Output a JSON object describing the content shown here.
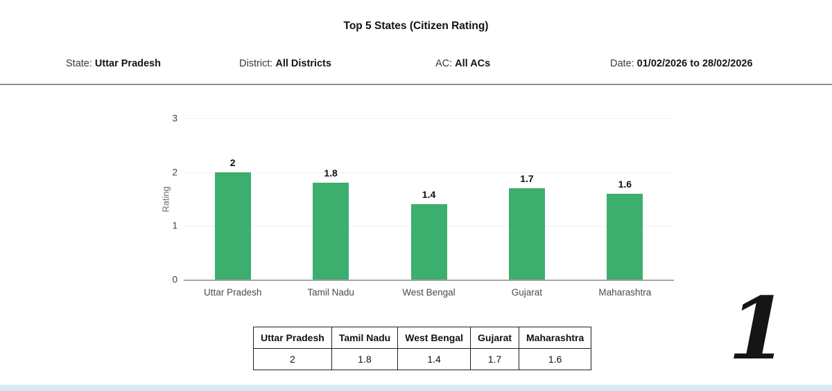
{
  "title": "Top 5 States (Citizen Rating)",
  "filters": {
    "state": {
      "label": "State:",
      "value": "Uttar Pradesh"
    },
    "district": {
      "label": "District:",
      "value": "All Districts"
    },
    "ac": {
      "label": "AC:",
      "value": "All ACs"
    },
    "date": {
      "label": "Date:",
      "value": "01/02/2026 to 28/02/2026"
    }
  },
  "chart_data": {
    "type": "bar",
    "title": "Top 5 States (Citizen Rating)",
    "categories": [
      "Uttar Pradesh",
      "Tamil Nadu",
      "West Bengal",
      "Gujarat",
      "Maharashtra"
    ],
    "values": [
      2,
      1.8,
      1.4,
      1.7,
      1.6
    ],
    "value_labels": [
      "2",
      "1.8",
      "1.4",
      "1.7",
      "1.6"
    ],
    "xlabel": "",
    "ylabel": "Rating",
    "ylim": [
      0,
      3
    ],
    "yticks": [
      0,
      1,
      2,
      3
    ],
    "grid": true,
    "legend_position": "none",
    "bar_color": "#3cae6d"
  },
  "summary_table": {
    "headers": [
      "Uttar Pradesh",
      "Tamil Nadu",
      "West Bengal",
      "Gujarat",
      "Maharashtra"
    ],
    "values": [
      "2",
      "1.8",
      "1.4",
      "1.7",
      "1.6"
    ]
  },
  "annotation": {
    "page_number": "1"
  },
  "colors": {
    "bar": "#3cae6d",
    "gridline": "#f1f1f1",
    "axis_line": "#a6a6a6",
    "divider": "#8f8f8f",
    "bottom_strip": "#dbe9f7"
  }
}
